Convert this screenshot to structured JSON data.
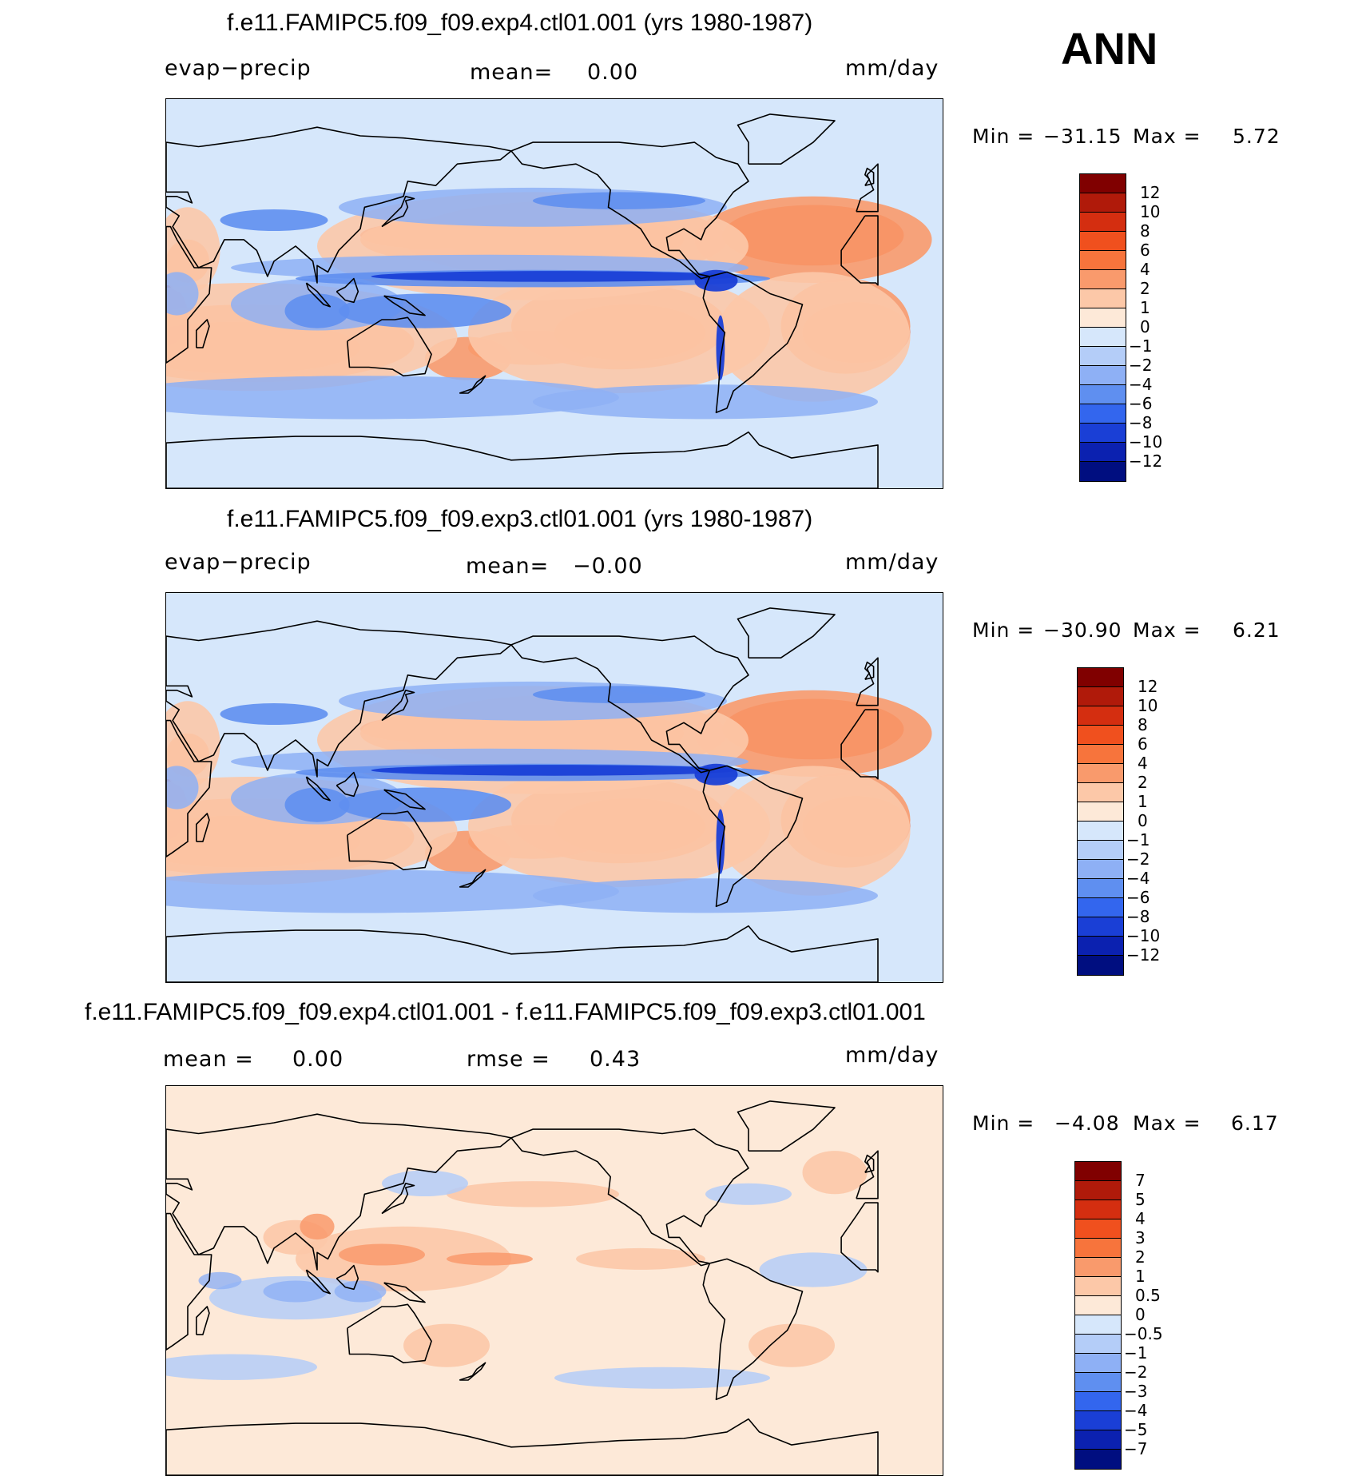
{
  "season": "ANN",
  "panels": [
    {
      "title": "f.e11.FAMIPC5.f09_f09.exp4.ctl01.001 (yrs 1980-1987)",
      "left_label": "evap−precip",
      "mean_label": "mean=",
      "mean_value": "0.00",
      "units": "mm/day",
      "min_label": "Min  =",
      "min_value": "−31.15",
      "max_label": "Max  =",
      "max_value": "5.72",
      "scale": "full",
      "colorbar": {
        "colors": [
          "#800000",
          "#b01a0a",
          "#d42e10",
          "#f0501e",
          "#f7743c",
          "#f99a6c",
          "#fcc8a8",
          "#fde9d8",
          "#d6e7fb",
          "#b4cdf8",
          "#8eb0f5",
          "#5f8ff0",
          "#3366ee",
          "#1a3fd6",
          "#0b21b0",
          "#000e80"
        ],
        "labels": [
          "12",
          "10",
          "8",
          "6",
          "4",
          "2",
          "1",
          "0",
          "−1",
          "−2",
          "−4",
          "−6",
          "−8",
          "−10",
          "−12"
        ]
      }
    },
    {
      "title": "f.e11.FAMIPC5.f09_f09.exp3.ctl01.001 (yrs 1980-1987)",
      "left_label": "evap−precip",
      "mean_label": "mean=",
      "mean_value": "−0.00",
      "units": "mm/day",
      "min_label": "Min  =",
      "min_value": "−30.90",
      "max_label": "Max  =",
      "max_value": "6.21",
      "scale": "full",
      "colorbar": {
        "colors": [
          "#800000",
          "#b01a0a",
          "#d42e10",
          "#f0501e",
          "#f7743c",
          "#f99a6c",
          "#fcc8a8",
          "#fde9d8",
          "#d6e7fb",
          "#b4cdf8",
          "#8eb0f5",
          "#5f8ff0",
          "#3366ee",
          "#1a3fd6",
          "#0b21b0",
          "#000e80"
        ],
        "labels": [
          "12",
          "10",
          "8",
          "6",
          "4",
          "2",
          "1",
          "0",
          "−1",
          "−2",
          "−4",
          "−6",
          "−8",
          "−10",
          "−12"
        ]
      }
    },
    {
      "title": "f.e11.FAMIPC5.f09_f09.exp4.ctl01.001 - f.e11.FAMIPC5.f09_f09.exp3.ctl01.001",
      "mean_label": "mean  =",
      "mean_value": "0.00",
      "rmse_label": "rmse  =",
      "rmse_value": "0.43",
      "units": "mm/day",
      "min_label": "Min  =",
      "min_value": "−4.08",
      "max_label": "Max  =",
      "max_value": "6.17",
      "scale": "diff",
      "colorbar": {
        "colors": [
          "#800000",
          "#b01a0a",
          "#d42e10",
          "#f0501e",
          "#f7743c",
          "#f99a6c",
          "#fcc8a8",
          "#fde9d8",
          "#d6e7fb",
          "#b4cdf8",
          "#8eb0f5",
          "#5f8ff0",
          "#3366ee",
          "#1a3fd6",
          "#0b21b0",
          "#000e80"
        ],
        "labels": [
          "7",
          "5",
          "4",
          "3",
          "2",
          "1",
          "0.5",
          "0",
          "−0.5",
          "−1",
          "−2",
          "−3",
          "−4",
          "−5",
          "−7"
        ]
      }
    }
  ]
}
